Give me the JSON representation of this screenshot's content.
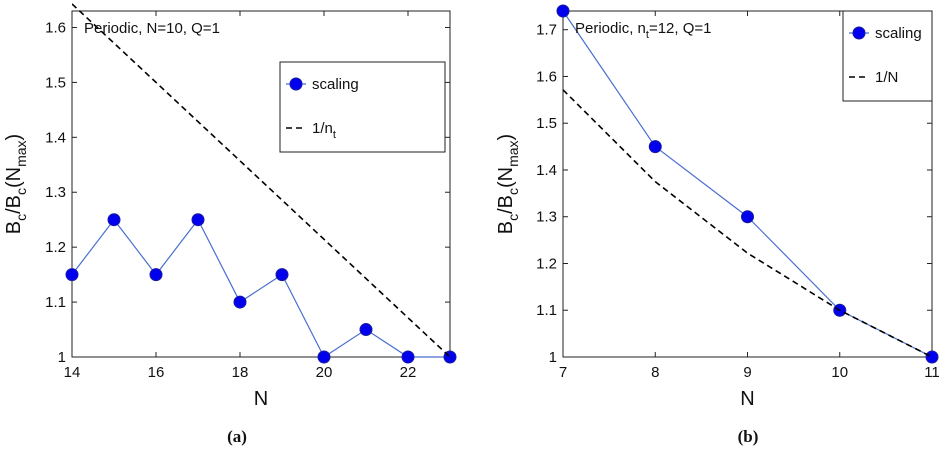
{
  "colors": {
    "marker": "#0000ee",
    "marker_edge": "#1a1aa0",
    "line": "#4a6fd0",
    "dashed": "#000000"
  },
  "chart_data": [
    {
      "type": "line",
      "caption": "(a)",
      "annotation": "Periodic, N=10, Q=1",
      "xlabel": "N",
      "ylabel": {
        "base": "B",
        "s1": "c",
        "mid": "/B",
        "s2": "c",
        "open": "(N",
        "s3": "max",
        "close": ")"
      },
      "xlim": [
        14,
        23
      ],
      "ylim": [
        1,
        1.63
      ],
      "xticks": [
        14,
        16,
        18,
        20,
        22
      ],
      "xtick_labels": [
        "14",
        "16",
        "18",
        "20",
        "22"
      ],
      "yticks": [
        1,
        1.1,
        1.2,
        1.3,
        1.4,
        1.5,
        1.6
      ],
      "ytick_labels": [
        "1",
        "1.1",
        "1.2",
        "1.3",
        "1.4",
        "1.5",
        "1.6"
      ],
      "legend": [
        {
          "kind": "marker-line",
          "label": "scaling",
          "label_sub": ""
        },
        {
          "kind": "dashed",
          "label": "1/n",
          "label_sub": "t"
        }
      ],
      "legend_position": "top-right",
      "series": [
        {
          "name": "scaling",
          "style": "marker-line",
          "x": [
            14,
            15,
            16,
            17,
            18,
            19,
            20,
            21,
            22,
            23
          ],
          "y": [
            1.15,
            1.25,
            1.15,
            1.25,
            1.1,
            1.15,
            1.0,
            1.05,
            1.0,
            1.0
          ]
        },
        {
          "name": "1/n_t",
          "style": "dashed",
          "x": [
            14,
            23
          ],
          "y": [
            1.6429,
            1.0
          ]
        }
      ]
    },
    {
      "type": "line",
      "caption": "(b)",
      "annotation": {
        "pre": "Periodic, n",
        "sub": "t",
        "post": "=12, Q=1"
      },
      "xlabel": "N",
      "ylabel": {
        "base": "B",
        "s1": "c",
        "mid": "/B",
        "s2": "c",
        "open": "(N",
        "s3": "max",
        "close": ")"
      },
      "xlim": [
        7,
        11
      ],
      "ylim": [
        1,
        1.74
      ],
      "xticks": [
        7,
        8,
        9,
        10,
        11
      ],
      "xtick_labels": [
        "7",
        "8",
        "9",
        "10",
        "11"
      ],
      "yticks": [
        1,
        1.1,
        1.2,
        1.3,
        1.4,
        1.5,
        1.6,
        1.7
      ],
      "ytick_labels": [
        "1",
        "1.1",
        "1.2",
        "1.3",
        "1.4",
        "1.5",
        "1.6",
        "1.7"
      ],
      "legend": [
        {
          "kind": "marker-line",
          "label": "scaling",
          "label_sub": ""
        },
        {
          "kind": "dashed",
          "label": "1/N",
          "label_sub": ""
        }
      ],
      "legend_position": "top-right",
      "series": [
        {
          "name": "scaling",
          "style": "marker-line",
          "x": [
            7,
            8,
            9,
            10,
            11
          ],
          "y": [
            1.74,
            1.45,
            1.3,
            1.1,
            1.0
          ]
        },
        {
          "name": "1/N",
          "style": "dashed",
          "x": [
            7,
            8,
            9,
            10,
            11
          ],
          "y": [
            1.5714,
            1.375,
            1.2222,
            1.1,
            1.0
          ]
        }
      ]
    }
  ]
}
